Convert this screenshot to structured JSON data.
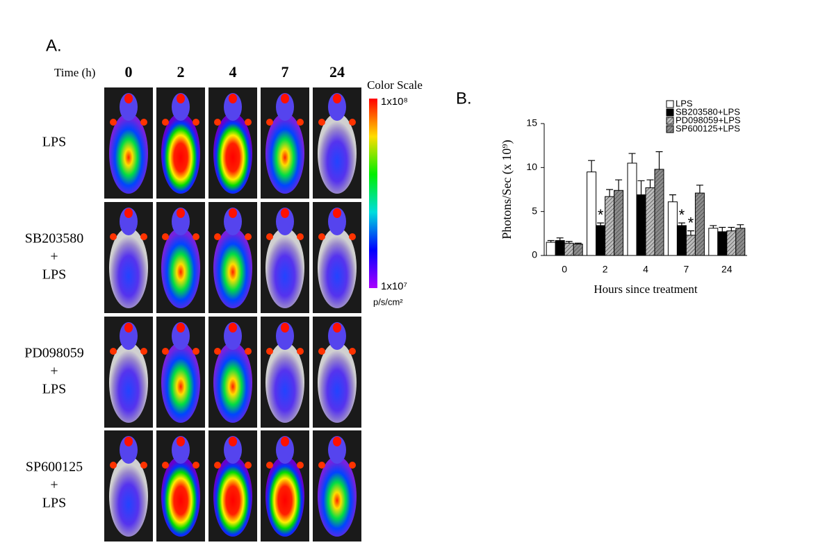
{
  "panel_a": {
    "label": "A.",
    "time_label": "Time (h)",
    "times": [
      "0",
      "2",
      "4",
      "7",
      "24"
    ],
    "rows": [
      [
        "LPS"
      ],
      [
        "SB203580",
        "+",
        "LPS"
      ],
      [
        "PD098059",
        "+",
        "LPS"
      ],
      [
        "SP600125",
        "+",
        "LPS"
      ]
    ],
    "color_scale": {
      "title": "Color Scale",
      "max_label": "1x10⁸",
      "min_label": "1x10⁷",
      "unit": "p/s/cm²"
    }
  },
  "chart_data": {
    "type": "bar",
    "panel_label": "B.",
    "y_label": "Photons/Sec (x 10⁹)",
    "x_label": "Hours since treatment",
    "categories": [
      "0",
      "2",
      "4",
      "7",
      "24"
    ],
    "ylim": [
      0,
      15
    ],
    "yticks": [
      0,
      5,
      10,
      15
    ],
    "series": [
      {
        "name": "LPS",
        "color": "#ffffff",
        "hatch": false,
        "values": [
          1.5,
          9.5,
          10.5,
          6.1,
          3.1
        ],
        "errors": [
          0.2,
          1.3,
          1.1,
          0.8,
          0.3
        ],
        "significance": [
          null,
          null,
          null,
          null,
          null
        ]
      },
      {
        "name": "SB203580+LPS",
        "color": "#000000",
        "hatch": false,
        "values": [
          1.7,
          3.4,
          6.9,
          3.4,
          2.7
        ],
        "errors": [
          0.3,
          0.3,
          1.6,
          0.3,
          0.5
        ],
        "significance": [
          null,
          "*",
          null,
          "*",
          null
        ]
      },
      {
        "name": "PD098059+LPS",
        "color": "#bdbdbd",
        "hatch": true,
        "values": [
          1.4,
          6.7,
          7.7,
          2.3,
          2.8
        ],
        "errors": [
          0.2,
          0.8,
          0.9,
          0.5,
          0.4
        ],
        "significance": [
          null,
          null,
          null,
          "*",
          null
        ]
      },
      {
        "name": "SP600125+LPS",
        "color": "#8c8c8c",
        "hatch": true,
        "values": [
          1.3,
          7.4,
          9.8,
          7.1,
          3.1
        ],
        "errors": [
          0.1,
          1.2,
          2.0,
          0.9,
          0.4
        ],
        "significance": [
          null,
          null,
          null,
          null,
          null
        ]
      }
    ]
  }
}
